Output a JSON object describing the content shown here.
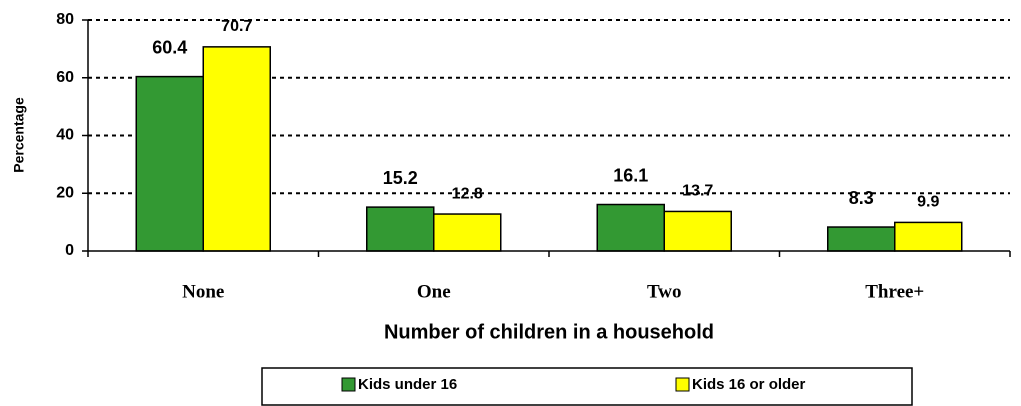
{
  "chart_data": {
    "type": "bar",
    "x_label": "Number of children in a household",
    "y_label": "Percentage",
    "categories": [
      "None",
      "One",
      "Two",
      "Three+"
    ],
    "series": [
      {
        "name": "Kids under 16",
        "color": "#339933",
        "values": [
          60.4,
          15.2,
          16.1,
          8.3
        ]
      },
      {
        "name": "Kids 16 or older",
        "color": "#ffff00",
        "values": [
          70.7,
          12.8,
          13.7,
          9.9
        ]
      }
    ],
    "ylim": [
      0,
      80
    ],
    "yticks": [
      0,
      20,
      40,
      60,
      80
    ],
    "grid": true
  }
}
